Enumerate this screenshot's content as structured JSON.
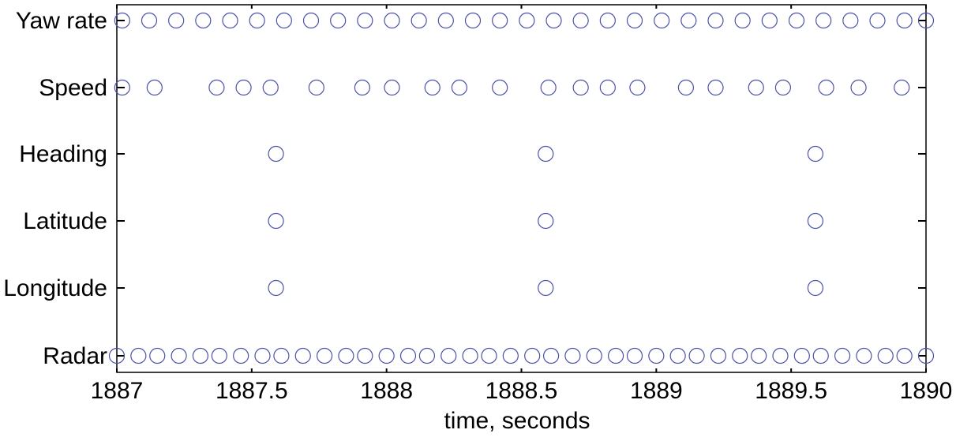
{
  "chart_data": {
    "type": "scatter",
    "title": "",
    "xlabel": "time, seconds",
    "ylabel": "",
    "xlim": [
      1887,
      1890
    ],
    "x_ticks": [
      {
        "value": 1887,
        "label": "1887"
      },
      {
        "value": 1887.5,
        "label": "1887.5"
      },
      {
        "value": 1888,
        "label": "1888"
      },
      {
        "value": 1888.5,
        "label": "1888.5"
      },
      {
        "value": 1889,
        "label": "1889"
      },
      {
        "value": 1889.5,
        "label": "1889.5"
      },
      {
        "value": 1890,
        "label": "1890"
      }
    ],
    "categories": [
      "Yaw rate",
      "Speed",
      "Heading",
      "Latitude",
      "Longitude",
      "Radar"
    ],
    "marker": "open-circle",
    "grid": false,
    "colors": {
      "marker": "#4a52a8",
      "axis": "#000000"
    },
    "series": [
      {
        "name": "Yaw rate",
        "x": [
          1887.02,
          1887.12,
          1887.22,
          1887.32,
          1887.42,
          1887.52,
          1887.62,
          1887.72,
          1887.82,
          1887.92,
          1888.02,
          1888.12,
          1888.22,
          1888.32,
          1888.42,
          1888.52,
          1888.62,
          1888.72,
          1888.82,
          1888.92,
          1889.02,
          1889.12,
          1889.22,
          1889.32,
          1889.42,
          1889.52,
          1889.62,
          1889.72,
          1889.82,
          1889.92,
          1890.0
        ]
      },
      {
        "name": "Speed",
        "x": [
          1887.02,
          1887.14,
          1887.37,
          1887.47,
          1887.57,
          1887.74,
          1887.91,
          1888.02,
          1888.17,
          1888.27,
          1888.42,
          1888.6,
          1888.72,
          1888.82,
          1888.93,
          1889.11,
          1889.22,
          1889.37,
          1889.47,
          1889.63,
          1889.75,
          1889.91
        ]
      },
      {
        "name": "Heading",
        "x": [
          1887.59,
          1888.59,
          1889.59
        ]
      },
      {
        "name": "Latitude",
        "x": [
          1887.59,
          1888.59,
          1889.59
        ]
      },
      {
        "name": "Longitude",
        "x": [
          1887.59,
          1888.59,
          1889.59
        ]
      },
      {
        "name": "Radar",
        "x": [
          1887.0,
          1887.08,
          1887.15,
          1887.23,
          1887.31,
          1887.38,
          1887.46,
          1887.54,
          1887.61,
          1887.69,
          1887.77,
          1887.85,
          1887.92,
          1888.0,
          1888.08,
          1888.15,
          1888.23,
          1888.31,
          1888.38,
          1888.46,
          1888.54,
          1888.61,
          1888.69,
          1888.77,
          1888.85,
          1888.92,
          1889.0,
          1889.08,
          1889.15,
          1889.23,
          1889.31,
          1889.38,
          1889.46,
          1889.54,
          1889.61,
          1889.69,
          1889.77,
          1889.85,
          1889.92,
          1890.0
        ]
      }
    ]
  }
}
